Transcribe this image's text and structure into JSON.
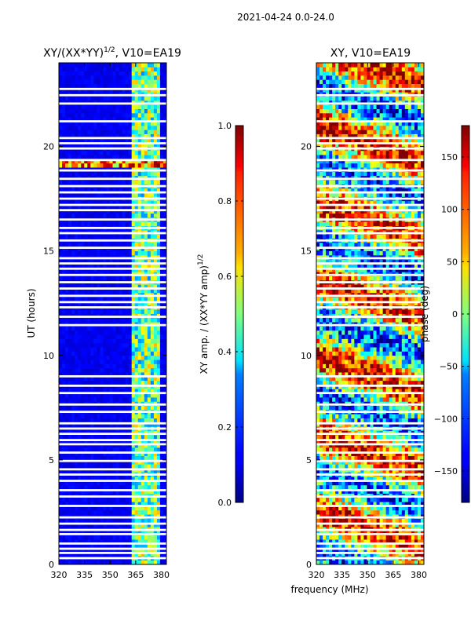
{
  "suptitle": "2021-04-24 0.0-24.0",
  "shared_xlabel": "frequency (MHz)",
  "chart_data": [
    {
      "type": "heatmap",
      "title": "XY/(XX*YY)^1/2, V10=EA19",
      "title_main": "XY/(XX*YY)",
      "title_sup": "1/2",
      "title_tail": ", V10=EA19",
      "xlabel": "frequency (MHz)",
      "ylabel": "UT (hours)",
      "xlim": [
        320,
        383
      ],
      "ylim": [
        0,
        24
      ],
      "xticks": [
        320,
        335,
        350,
        365,
        380
      ],
      "yticks": [
        0,
        5,
        10,
        15,
        20
      ],
      "bright_band_mhz": [
        363,
        380
      ],
      "colorbar": {
        "label": "XY amp. / (XX*YY amp)^1/2",
        "label_main": "XY amp. / (XX*YY amp)",
        "label_sup": "1/2",
        "range": [
          0.0,
          1.0
        ],
        "ticks": [
          "0.0",
          "0.2",
          "0.4",
          "0.6",
          "0.8",
          "1.0"
        ]
      },
      "colormap": "jet"
    },
    {
      "type": "heatmap",
      "title": "XY, V10=EA19",
      "xlabel": "frequency (MHz)",
      "ylabel": "",
      "xlim": [
        320,
        383
      ],
      "ylim": [
        0,
        24
      ],
      "xticks": [
        320,
        335,
        350,
        365,
        380
      ],
      "yticks": [
        0,
        5,
        10,
        15,
        20
      ],
      "colorbar": {
        "label": "phase (deg)",
        "range": [
          -180,
          180
        ],
        "ticks": [
          "−150",
          "−100",
          "−50",
          "0",
          "50",
          "100",
          "150"
        ],
        "tick_values": [
          -150,
          -100,
          -50,
          0,
          50,
          100,
          150
        ]
      },
      "colormap": "jet"
    }
  ],
  "gap_hours": [
    0.3,
    0.55,
    0.75,
    1.0,
    1.45,
    1.65,
    1.95,
    2.25,
    2.8,
    3.25,
    3.55,
    4.0,
    4.3,
    4.55,
    4.95,
    5.35,
    5.75,
    5.95,
    6.25,
    6.5,
    6.75,
    7.3,
    7.65,
    8.2,
    8.55,
    9.0,
    11.45,
    11.85,
    12.3,
    12.55,
    12.85,
    13.2,
    13.5,
    13.85,
    14.15,
    14.4,
    14.65,
    15.15,
    15.5,
    15.85,
    16.1,
    16.5,
    16.95,
    17.2,
    17.5,
    17.8,
    18.1,
    18.45,
    18.85,
    19.35,
    19.9,
    20.15,
    20.4,
    21.2,
    22.05,
    22.45,
    22.75
  ]
}
